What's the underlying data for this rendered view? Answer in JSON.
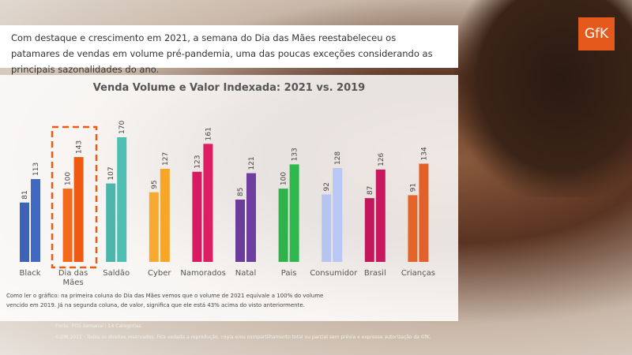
{
  "header": {
    "text": "Com destaque e crescimento em 2021, a semana do Dia das Mães reestabeleceu os patamares de vendas em volume pré-pandemia, uma das poucas exceções considerando as principais sazonalidades do ano.",
    "logo": "GfK"
  },
  "chart_data": {
    "type": "bar",
    "title": "Venda Volume e Valor Indexada: 2021 vs. 2019",
    "categories": [
      "Black",
      "Dia das Mães",
      "Saldão",
      "Cyber",
      "Namorados",
      "Natal",
      "Pais",
      "Consumidor",
      "Brasil",
      "Crianças"
    ],
    "series": [
      {
        "values": [
          81,
          100,
          107,
          95,
          123,
          85,
          100,
          92,
          87,
          91
        ],
        "colors": [
          "#3d62b8",
          "#f26a1b",
          "#4db6ac",
          "#f7a932",
          "#d81b60",
          "#6a3d9a",
          "#2db34a",
          "#b5c4f0",
          "#c2185b",
          "#e3652b"
        ]
      },
      {
        "values": [
          113,
          143,
          170,
          127,
          161,
          121,
          133,
          128,
          126,
          134
        ],
        "colors": [
          "#4169c4",
          "#ef5a12",
          "#4fbfb3",
          "#f8a623",
          "#dc1f63",
          "#6e3fa0",
          "#2eb84c",
          "#b8c7f3",
          "#c8195e",
          "#e26029"
        ]
      }
    ],
    "note": "Como ler o gráfico: na primeira coluna do Dia das Mães vemos que o volume de 2021 equivale a 100% do volume vencido em 2019. Já na segunda coluna, de valor, significa que ele está 43% acima do visto anteriormente."
  },
  "footer": {
    "source": "Fonte: POS Semanal | 14 Categorias",
    "copyright": "©GfK 2022 · Todos os direitos reservados. Fica vedada a reprodução, cópia e/ou compartilhamento total ou parcial sem prévia e expressa autorização da GfK."
  }
}
